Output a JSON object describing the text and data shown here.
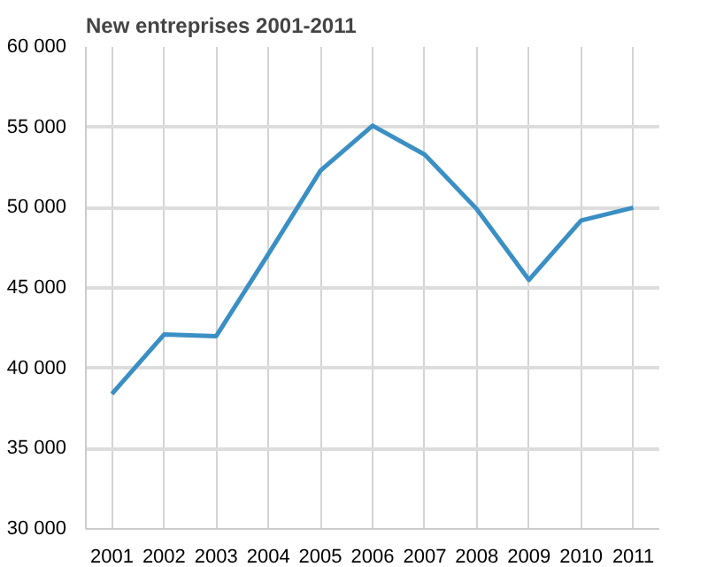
{
  "chart_data": {
    "type": "line",
    "title": "New entreprises 2001-2011",
    "categories": [
      "2001",
      "2002",
      "2003",
      "2004",
      "2005",
      "2006",
      "2007",
      "2008",
      "2009",
      "2010",
      "2011"
    ],
    "series": [
      {
        "color": "#3a8fc4",
        "values": [
          38400,
          42100,
          42000,
          47100,
          52300,
          55100,
          53300,
          49900,
          45500,
          49200,
          50000
        ]
      }
    ],
    "ylim": [
      30000,
      60000
    ],
    "yticks": [
      {
        "value": 30000,
        "label": "30 000"
      },
      {
        "value": 35000,
        "label": "35 000"
      },
      {
        "value": 40000,
        "label": "40 000"
      },
      {
        "value": 45000,
        "label": "45 000"
      },
      {
        "value": 50000,
        "label": "50 000"
      },
      {
        "value": 55000,
        "label": "55 000"
      },
      {
        "value": 60000,
        "label": "60 000"
      }
    ],
    "grid": true,
    "line_style": "solid"
  }
}
